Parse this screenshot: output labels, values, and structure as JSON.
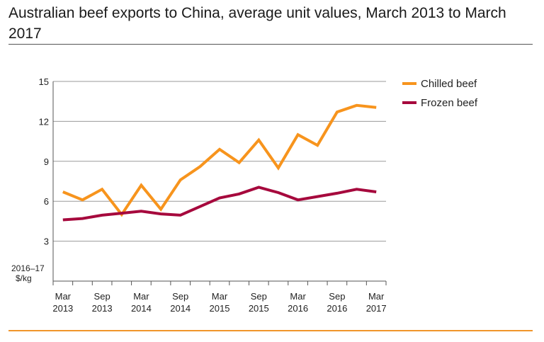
{
  "title": "Australian beef exports to China, average unit values, March 2013 to March 2017",
  "chart_data": {
    "type": "line",
    "title": "Australian beef exports to China, average unit values, March 2013 to March 2017",
    "ylabel_line1": "2016–17",
    "ylabel_line2": "$/kg",
    "ylim": [
      0,
      15
    ],
    "yticks": [
      3,
      6,
      9,
      12,
      15
    ],
    "grid": true,
    "legend_position": "top-right",
    "x": [
      "Mar 2013",
      "Jun 2013",
      "Sep 2013",
      "Dec 2013",
      "Mar 2014",
      "Jun 2014",
      "Sep 2014",
      "Dec 2014",
      "Mar 2015",
      "Jun 2015",
      "Sep 2015",
      "Dec 2015",
      "Mar 2016",
      "Jun 2016",
      "Sep 2016",
      "Dec 2016",
      "Mar 2017"
    ],
    "xtick_labels": [
      {
        "month": "Mar",
        "year": "2013",
        "index": 0
      },
      {
        "month": "Sep",
        "year": "2013",
        "index": 2
      },
      {
        "month": "Mar",
        "year": "2014",
        "index": 4
      },
      {
        "month": "Sep",
        "year": "2014",
        "index": 6
      },
      {
        "month": "Mar",
        "year": "2015",
        "index": 8
      },
      {
        "month": "Sep",
        "year": "2015",
        "index": 10
      },
      {
        "month": "Mar",
        "year": "2016",
        "index": 12
      },
      {
        "month": "Sep",
        "year": "2016",
        "index": 14
      },
      {
        "month": "Mar",
        "year": "2017",
        "index": 16
      }
    ],
    "series": [
      {
        "name": "Chilled beef",
        "color": "#f7941d",
        "values": [
          6.7,
          6.1,
          6.9,
          5.0,
          7.2,
          5.4,
          7.6,
          8.6,
          9.9,
          8.9,
          10.6,
          8.5,
          11.0,
          10.2,
          12.7,
          13.2,
          13.05
        ]
      },
      {
        "name": "Frozen beef",
        "color": "#a6093d",
        "values": [
          4.6,
          4.7,
          4.95,
          5.1,
          5.25,
          5.05,
          4.95,
          5.6,
          6.25,
          6.55,
          7.05,
          6.65,
          6.1,
          6.35,
          6.6,
          6.9,
          6.7
        ]
      }
    ]
  }
}
